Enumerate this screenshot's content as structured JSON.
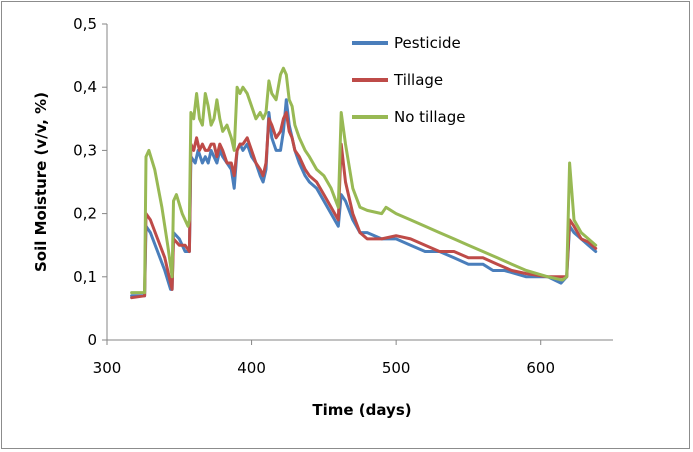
{
  "chart_data": {
    "type": "line",
    "title": "",
    "xlabel": "Time (days)",
    "ylabel": "Soil Moisture (v/v, %)",
    "xlim": [
      300,
      650
    ],
    "ylim": [
      0,
      0.5
    ],
    "x_ticks": [
      300,
      400,
      500,
      600
    ],
    "x_tick_labels": [
      "300",
      "400",
      "500",
      "600"
    ],
    "y_ticks": [
      0,
      0.1,
      0.2,
      0.3,
      0.4,
      0.5
    ],
    "y_tick_labels": [
      "0",
      "0,1",
      "0,2",
      "0,3",
      "0,4",
      "0,5"
    ],
    "grid": false,
    "legend_position": "top-right",
    "series": [
      {
        "name": "Pesticide",
        "color": "#4a7ebb",
        "points": [
          [
            317,
            0.07
          ],
          [
            326,
            0.07
          ],
          [
            327,
            0.18
          ],
          [
            330,
            0.17
          ],
          [
            335,
            0.14
          ],
          [
            340,
            0.11
          ],
          [
            344,
            0.08
          ],
          [
            345,
            0.08
          ],
          [
            346,
            0.17
          ],
          [
            350,
            0.16
          ],
          [
            354,
            0.14
          ],
          [
            357,
            0.14
          ],
          [
            358,
            0.29
          ],
          [
            361,
            0.28
          ],
          [
            363,
            0.3
          ],
          [
            366,
            0.28
          ],
          [
            368,
            0.29
          ],
          [
            370,
            0.28
          ],
          [
            372,
            0.3
          ],
          [
            374,
            0.29
          ],
          [
            376,
            0.28
          ],
          [
            378,
            0.3
          ],
          [
            380,
            0.29
          ],
          [
            383,
            0.28
          ],
          [
            386,
            0.27
          ],
          [
            388,
            0.24
          ],
          [
            390,
            0.3
          ],
          [
            392,
            0.31
          ],
          [
            394,
            0.3
          ],
          [
            397,
            0.31
          ],
          [
            400,
            0.29
          ],
          [
            403,
            0.28
          ],
          [
            406,
            0.26
          ],
          [
            408,
            0.25
          ],
          [
            410,
            0.27
          ],
          [
            412,
            0.36
          ],
          [
            414,
            0.32
          ],
          [
            417,
            0.3
          ],
          [
            420,
            0.3
          ],
          [
            422,
            0.33
          ],
          [
            424,
            0.38
          ],
          [
            426,
            0.34
          ],
          [
            428,
            0.32
          ],
          [
            430,
            0.3
          ],
          [
            433,
            0.28
          ],
          [
            437,
            0.26
          ],
          [
            440,
            0.25
          ],
          [
            445,
            0.24
          ],
          [
            450,
            0.22
          ],
          [
            455,
            0.2
          ],
          [
            460,
            0.18
          ],
          [
            462,
            0.23
          ],
          [
            465,
            0.22
          ],
          [
            470,
            0.19
          ],
          [
            475,
            0.17
          ],
          [
            480,
            0.17
          ],
          [
            490,
            0.16
          ],
          [
            500,
            0.16
          ],
          [
            510,
            0.15
          ],
          [
            520,
            0.14
          ],
          [
            530,
            0.14
          ],
          [
            540,
            0.13
          ],
          [
            550,
            0.12
          ],
          [
            560,
            0.12
          ],
          [
            567,
            0.11
          ],
          [
            575,
            0.11
          ],
          [
            590,
            0.1
          ],
          [
            605,
            0.1
          ],
          [
            614,
            0.09
          ],
          [
            618,
            0.1
          ],
          [
            620,
            0.18
          ],
          [
            623,
            0.17
          ],
          [
            628,
            0.16
          ],
          [
            633,
            0.15
          ],
          [
            638,
            0.14
          ]
        ]
      },
      {
        "name": "Tillage",
        "color": "#be4b48",
        "points": [
          [
            317,
            0.067
          ],
          [
            326,
            0.07
          ],
          [
            327,
            0.2
          ],
          [
            330,
            0.19
          ],
          [
            335,
            0.16
          ],
          [
            340,
            0.13
          ],
          [
            344,
            0.09
          ],
          [
            345,
            0.08
          ],
          [
            346,
            0.16
          ],
          [
            350,
            0.15
          ],
          [
            354,
            0.15
          ],
          [
            357,
            0.14
          ],
          [
            358,
            0.31
          ],
          [
            360,
            0.3
          ],
          [
            362,
            0.32
          ],
          [
            364,
            0.3
          ],
          [
            366,
            0.31
          ],
          [
            368,
            0.3
          ],
          [
            370,
            0.3
          ],
          [
            372,
            0.31
          ],
          [
            374,
            0.31
          ],
          [
            376,
            0.29
          ],
          [
            378,
            0.31
          ],
          [
            380,
            0.3
          ],
          [
            383,
            0.28
          ],
          [
            386,
            0.28
          ],
          [
            388,
            0.26
          ],
          [
            390,
            0.3
          ],
          [
            392,
            0.31
          ],
          [
            394,
            0.31
          ],
          [
            397,
            0.32
          ],
          [
            400,
            0.3
          ],
          [
            403,
            0.28
          ],
          [
            406,
            0.27
          ],
          [
            408,
            0.26
          ],
          [
            410,
            0.28
          ],
          [
            412,
            0.35
          ],
          [
            414,
            0.34
          ],
          [
            417,
            0.32
          ],
          [
            420,
            0.33
          ],
          [
            422,
            0.35
          ],
          [
            424,
            0.36
          ],
          [
            426,
            0.33
          ],
          [
            428,
            0.32
          ],
          [
            430,
            0.3
          ],
          [
            433,
            0.29
          ],
          [
            437,
            0.27
          ],
          [
            440,
            0.26
          ],
          [
            445,
            0.25
          ],
          [
            450,
            0.23
          ],
          [
            455,
            0.21
          ],
          [
            460,
            0.19
          ],
          [
            462,
            0.31
          ],
          [
            465,
            0.25
          ],
          [
            470,
            0.2
          ],
          [
            475,
            0.17
          ],
          [
            480,
            0.16
          ],
          [
            490,
            0.16
          ],
          [
            500,
            0.165
          ],
          [
            510,
            0.16
          ],
          [
            520,
            0.15
          ],
          [
            530,
            0.14
          ],
          [
            540,
            0.14
          ],
          [
            550,
            0.13
          ],
          [
            560,
            0.13
          ],
          [
            570,
            0.12
          ],
          [
            580,
            0.11
          ],
          [
            590,
            0.105
          ],
          [
            605,
            0.1
          ],
          [
            615,
            0.1
          ],
          [
            618,
            0.1
          ],
          [
            620,
            0.19
          ],
          [
            623,
            0.18
          ],
          [
            628,
            0.16
          ],
          [
            633,
            0.155
          ],
          [
            638,
            0.145
          ]
        ]
      },
      {
        "name": "No tillage",
        "color": "#98b954",
        "points": [
          [
            317,
            0.075
          ],
          [
            326,
            0.075
          ],
          [
            327,
            0.29
          ],
          [
            329,
            0.3
          ],
          [
            333,
            0.27
          ],
          [
            338,
            0.21
          ],
          [
            342,
            0.15
          ],
          [
            345,
            0.1
          ],
          [
            346,
            0.22
          ],
          [
            348,
            0.23
          ],
          [
            352,
            0.2
          ],
          [
            356,
            0.18
          ],
          [
            357,
            0.19
          ],
          [
            358,
            0.36
          ],
          [
            360,
            0.35
          ],
          [
            362,
            0.39
          ],
          [
            364,
            0.35
          ],
          [
            366,
            0.34
          ],
          [
            368,
            0.39
          ],
          [
            370,
            0.37
          ],
          [
            372,
            0.34
          ],
          [
            374,
            0.35
          ],
          [
            376,
            0.38
          ],
          [
            378,
            0.35
          ],
          [
            380,
            0.33
          ],
          [
            383,
            0.34
          ],
          [
            386,
            0.32
          ],
          [
            388,
            0.3
          ],
          [
            390,
            0.4
          ],
          [
            392,
            0.39
          ],
          [
            394,
            0.4
          ],
          [
            397,
            0.39
          ],
          [
            400,
            0.37
          ],
          [
            403,
            0.35
          ],
          [
            406,
            0.36
          ],
          [
            408,
            0.35
          ],
          [
            410,
            0.36
          ],
          [
            412,
            0.41
          ],
          [
            414,
            0.39
          ],
          [
            417,
            0.38
          ],
          [
            420,
            0.42
          ],
          [
            422,
            0.43
          ],
          [
            424,
            0.42
          ],
          [
            426,
            0.38
          ],
          [
            428,
            0.37
          ],
          [
            430,
            0.34
          ],
          [
            433,
            0.32
          ],
          [
            437,
            0.3
          ],
          [
            440,
            0.29
          ],
          [
            445,
            0.27
          ],
          [
            450,
            0.26
          ],
          [
            455,
            0.24
          ],
          [
            460,
            0.21
          ],
          [
            462,
            0.36
          ],
          [
            465,
            0.31
          ],
          [
            470,
            0.24
          ],
          [
            475,
            0.21
          ],
          [
            480,
            0.205
          ],
          [
            490,
            0.2
          ],
          [
            493,
            0.21
          ],
          [
            500,
            0.2
          ],
          [
            510,
            0.19
          ],
          [
            520,
            0.18
          ],
          [
            530,
            0.17
          ],
          [
            540,
            0.16
          ],
          [
            550,
            0.15
          ],
          [
            560,
            0.14
          ],
          [
            570,
            0.13
          ],
          [
            580,
            0.12
          ],
          [
            590,
            0.11
          ],
          [
            605,
            0.1
          ],
          [
            615,
            0.095
          ],
          [
            618,
            0.1
          ],
          [
            620,
            0.28
          ],
          [
            623,
            0.19
          ],
          [
            628,
            0.17
          ],
          [
            633,
            0.16
          ],
          [
            638,
            0.15
          ]
        ]
      }
    ]
  }
}
